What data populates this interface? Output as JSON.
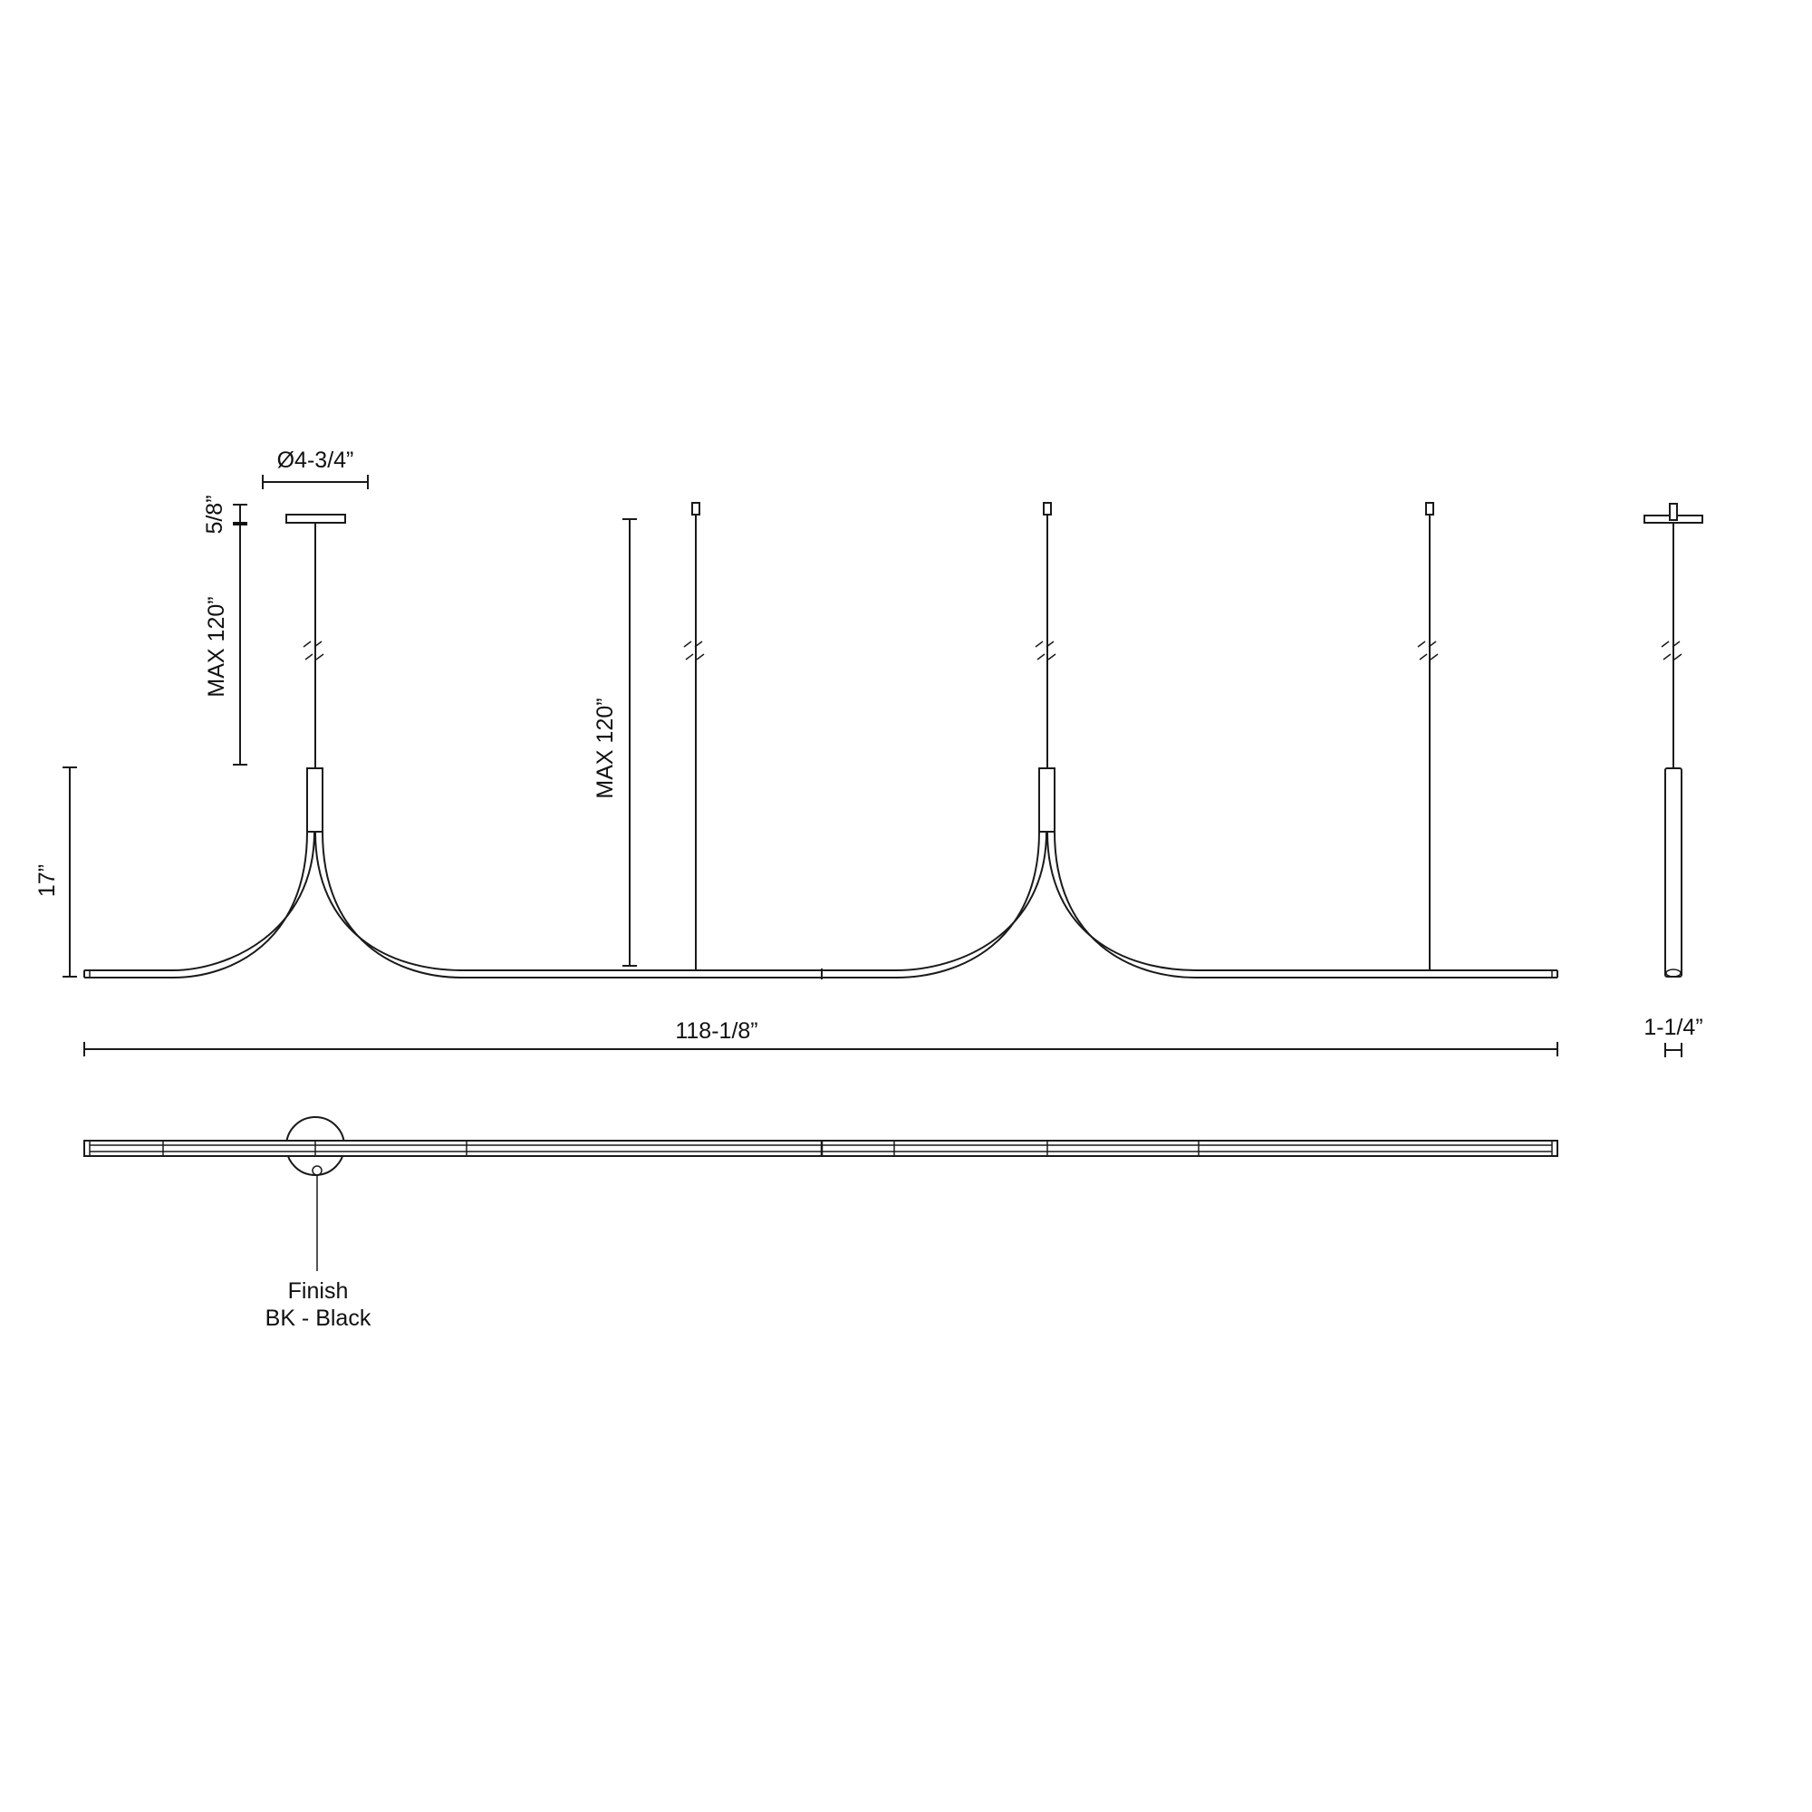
{
  "dimensions": {
    "canopy_diameter": "Ø4-3/4”",
    "canopy_height": "5/8”",
    "max_cable_left": "MAX 120”",
    "max_cable_center": "MAX 120”",
    "fixture_height": "17”",
    "overall_length": "118-1/8”",
    "profile_width": "1-1/4”"
  },
  "finish": {
    "label": "Finish",
    "value": "BK - Black"
  },
  "colors": {
    "line": "#1a1a1a",
    "background": "#ffffff"
  }
}
